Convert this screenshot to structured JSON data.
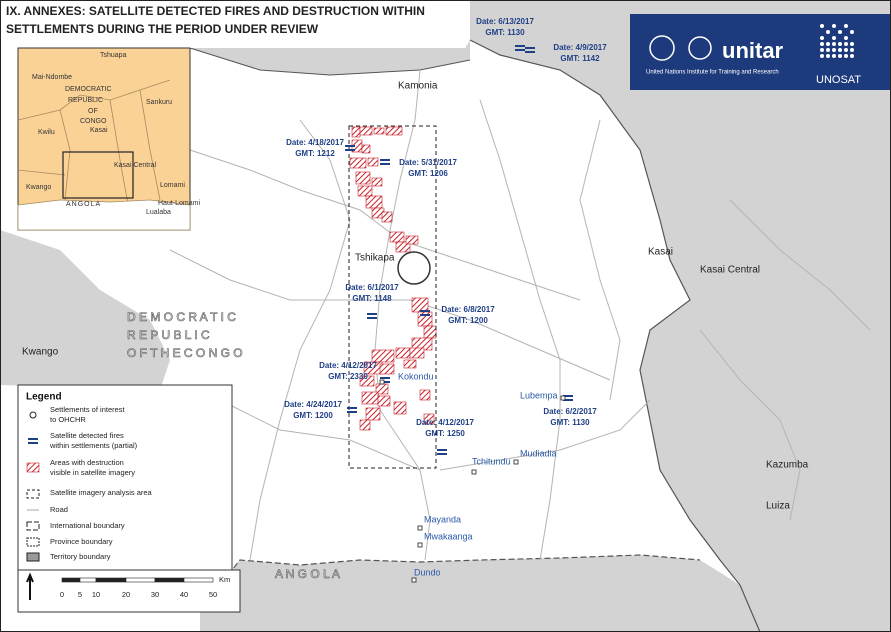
{
  "header": {
    "title_lines": [
      "IX. ANNEXES: SATELLITE DETECTED FIRES AND DESTRUCTION WITHIN",
      "SETTLEMENTS DURING THE PERIOD UNDER REVIEW"
    ]
  },
  "logos": {
    "unitar": "unitar",
    "unitar_caption": "United Nations Institute for Training and Research",
    "unosat": "UNOSAT"
  },
  "inset": {
    "labels": [
      "Tshuapa",
      "Mai-Ndombe",
      "DEMOCRATIC",
      "REPUBLIC",
      "OF",
      "CONGO",
      "Sankuru",
      "Kwilu",
      "Kasai",
      "Kasai Central",
      "Kwango",
      "Lomami",
      "Haut-Lomami",
      "ANGOLA",
      "Lualaba"
    ]
  },
  "map": {
    "provinces": [
      "Kasai",
      "Kasai Central",
      "Kwango"
    ],
    "places": [
      "Kamonia",
      "Tshikapa",
      "Kokondu",
      "Lubempa",
      "Mudiadia",
      "Tchitundu",
      "Mayanda",
      "Mwakaanga",
      "Dundo",
      "Kazumba",
      "Luiza"
    ],
    "country_lines": [
      "D E M O C R A T I C",
      "R E P U B L I C",
      "O F   T H E   C O N G O"
    ],
    "neighbour": "A N G O L A"
  },
  "fires": [
    {
      "date": "Date: 6/13/2017",
      "time": "GMT: 1130"
    },
    {
      "date": "Date: 4/9/2017",
      "time": "GMT: 1142"
    },
    {
      "date": "Date: 4/18/2017",
      "time": "GMT: 1212"
    },
    {
      "date": "Date: 5/31/2017",
      "time": "GMT: 1206"
    },
    {
      "date": "Date: 6/1/2017",
      "time": "GMT: 1148"
    },
    {
      "date": "Date: 6/8/2017",
      "time": "GMT: 1200"
    },
    {
      "date": "Date: 4/12/2017",
      "time": "GMT: 2330"
    },
    {
      "date": "Date: 4/24/2017",
      "time": "GMT: 1200"
    },
    {
      "date": "Date: 4/12/2017",
      "time": "GMT: 1250"
    },
    {
      "date": "Date: 6/2/2017",
      "time": "GMT: 1130"
    }
  ],
  "legend": {
    "title": "Legend",
    "items": [
      [
        "Settlements of interest",
        "to OHCHR"
      ],
      [
        "Satellite detected fires",
        "within settlements (partial)"
      ],
      [
        "Areas with destruction",
        "visible in satellite imagery"
      ],
      [
        "Satellite imagery analysis area"
      ],
      [
        "Road"
      ],
      [
        "International boundary"
      ],
      [
        "Province boundary"
      ],
      [
        "Territory boundary"
      ]
    ]
  },
  "scale": {
    "ticks": [
      "0",
      "5",
      "10",
      "20",
      "30",
      "40",
      "50"
    ],
    "unit": "Km"
  }
}
